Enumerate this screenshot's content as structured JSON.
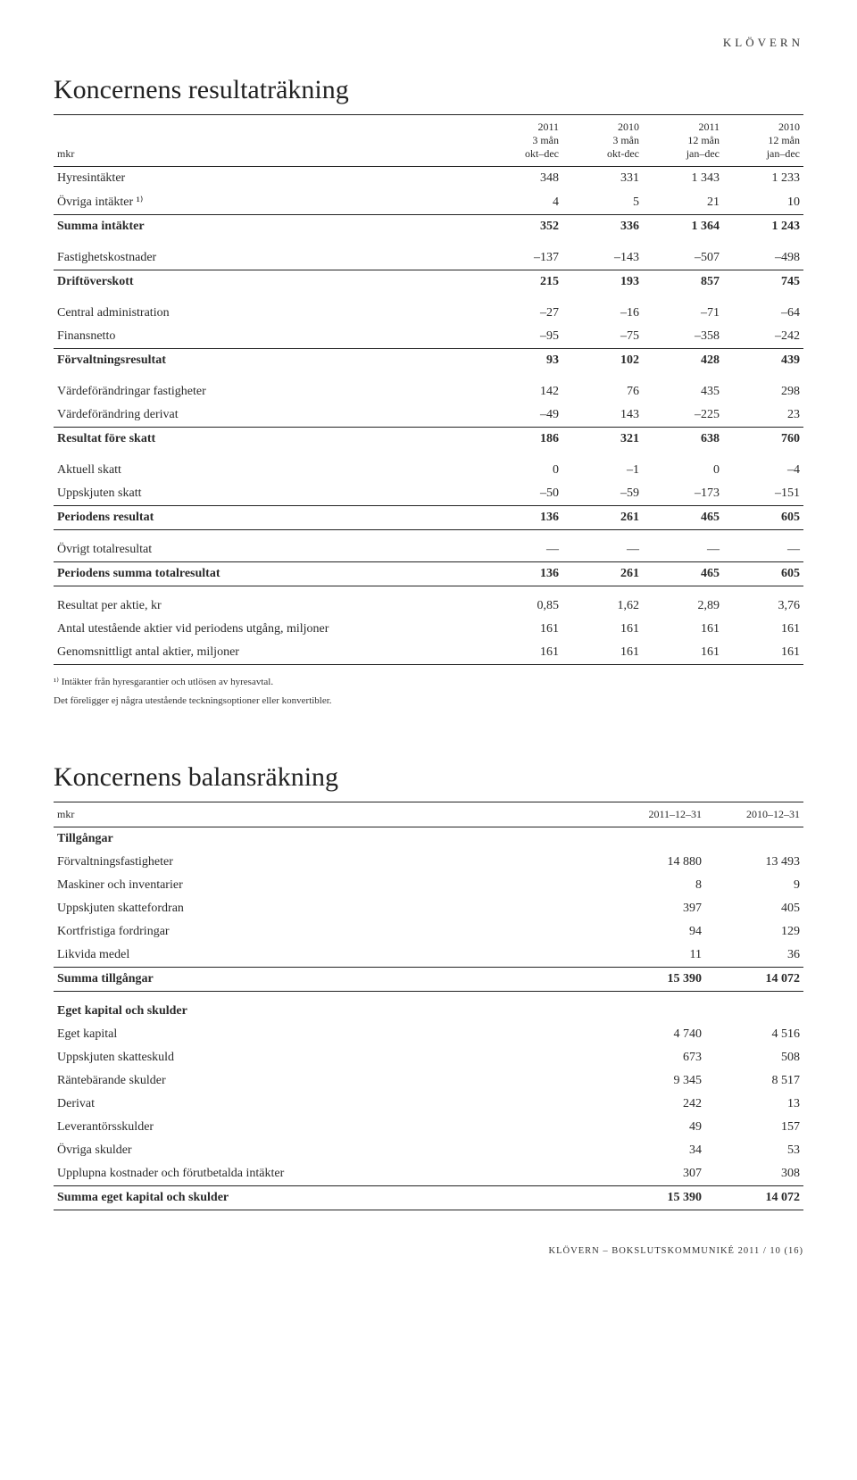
{
  "brand": "KLÖVERN",
  "income": {
    "title": "Koncernens resultaträkning",
    "headers": {
      "unit": "mkr",
      "c1a": "2011",
      "c1b": "3 mån",
      "c1c": "okt–dec",
      "c2a": "2010",
      "c2b": "3 mån",
      "c2c": "okt-dec",
      "c3a": "2011",
      "c3b": "12 mån",
      "c3c": "jan–dec",
      "c4a": "2010",
      "c4b": "12 mån",
      "c4c": "jan–dec"
    },
    "rows": [
      {
        "label": "Hyresintäkter",
        "v": [
          "348",
          "331",
          "1 343",
          "1 233"
        ]
      },
      {
        "label": "Övriga intäkter ¹⁾",
        "v": [
          "4",
          "5",
          "21",
          "10"
        ]
      },
      {
        "label": "Summa intäkter",
        "v": [
          "352",
          "336",
          "1 364",
          "1 243"
        ],
        "bold": true,
        "rule_top": true
      },
      {
        "label": "Fastighetskostnader",
        "v": [
          "–137",
          "–143",
          "–507",
          "–498"
        ],
        "spacer": true
      },
      {
        "label": "Driftöverskott",
        "v": [
          "215",
          "193",
          "857",
          "745"
        ],
        "bold": true,
        "rule_top": true
      },
      {
        "label": "Central administration",
        "v": [
          "–27",
          "–16",
          "–71",
          "–64"
        ],
        "spacer": true
      },
      {
        "label": "Finansnetto",
        "v": [
          "–95",
          "–75",
          "–358",
          "–242"
        ]
      },
      {
        "label": "Förvaltningsresultat",
        "v": [
          "93",
          "102",
          "428",
          "439"
        ],
        "bold": true,
        "rule_top": true
      },
      {
        "label": "Värdeförändringar fastigheter",
        "v": [
          "142",
          "76",
          "435",
          "298"
        ],
        "spacer": true
      },
      {
        "label": "Värdeförändring derivat",
        "v": [
          "–49",
          "143",
          "–225",
          "23"
        ]
      },
      {
        "label": "Resultat före skatt",
        "v": [
          "186",
          "321",
          "638",
          "760"
        ],
        "bold": true,
        "rule_top": true
      },
      {
        "label": "Aktuell skatt",
        "v": [
          "0",
          "–1",
          "0",
          "–4"
        ],
        "spacer": true
      },
      {
        "label": "Uppskjuten skatt",
        "v": [
          "–50",
          "–59",
          "–173",
          "–151"
        ]
      },
      {
        "label": "Periodens resultat",
        "v": [
          "136",
          "261",
          "465",
          "605"
        ],
        "bold": true,
        "rule_top": true,
        "rule_bottom": true
      },
      {
        "label": "Övrigt totalresultat",
        "v": [
          "—",
          "—",
          "—",
          "—"
        ],
        "spacer": true
      },
      {
        "label": "Periodens summa totalresultat",
        "v": [
          "136",
          "261",
          "465",
          "605"
        ],
        "bold": true,
        "rule_top": true,
        "rule_bottom": true
      },
      {
        "label": "Resultat per aktie, kr",
        "v": [
          "0,85",
          "1,62",
          "2,89",
          "3,76"
        ],
        "spacer": true
      },
      {
        "label": "Antal utestående aktier vid periodens utgång, miljoner",
        "v": [
          "161",
          "161",
          "161",
          "161"
        ]
      },
      {
        "label": "Genomsnittligt antal aktier, miljoner",
        "v": [
          "161",
          "161",
          "161",
          "161"
        ],
        "rule_bottom": true
      }
    ],
    "footnote1": "¹⁾ Intäkter från hyresgarantier och utlösen av hyresavtal.",
    "footnote2": "Det föreligger ej några utestående teckningsoptioner eller konvertibler."
  },
  "balance": {
    "title": "Koncernens balansräkning",
    "headers": {
      "unit": "mkr",
      "c1": "2011–12–31",
      "c2": "2010–12–31"
    },
    "rows": [
      {
        "label": "Tillgångar",
        "v": [
          "",
          ""
        ],
        "bold": true
      },
      {
        "label": "Förvaltningsfastigheter",
        "v": [
          "14 880",
          "13 493"
        ]
      },
      {
        "label": "Maskiner och inventarier",
        "v": [
          "8",
          "9"
        ]
      },
      {
        "label": "Uppskjuten skattefordran",
        "v": [
          "397",
          "405"
        ]
      },
      {
        "label": "Kortfristiga fordringar",
        "v": [
          "94",
          "129"
        ]
      },
      {
        "label": "Likvida medel",
        "v": [
          "11",
          "36"
        ]
      },
      {
        "label": "Summa tillgångar",
        "v": [
          "15 390",
          "14 072"
        ],
        "bold": true,
        "rule_top": true,
        "rule_bottom": true
      },
      {
        "label": "Eget kapital och skulder",
        "v": [
          "",
          ""
        ],
        "bold": true,
        "spacer": true
      },
      {
        "label": "Eget kapital",
        "v": [
          "4 740",
          "4 516"
        ]
      },
      {
        "label": "Uppskjuten skatteskuld",
        "v": [
          "673",
          "508"
        ]
      },
      {
        "label": "Räntebärande skulder",
        "v": [
          "9 345",
          "8 517"
        ]
      },
      {
        "label": "Derivat",
        "v": [
          "242",
          "13"
        ]
      },
      {
        "label": "Leverantörsskulder",
        "v": [
          "49",
          "157"
        ]
      },
      {
        "label": "Övriga skulder",
        "v": [
          "34",
          "53"
        ]
      },
      {
        "label": "Upplupna kostnader och förutbetalda intäkter",
        "v": [
          "307",
          "308"
        ]
      },
      {
        "label": "Summa eget kapital och skulder",
        "v": [
          "15 390",
          "14 072"
        ],
        "bold": true,
        "rule_top": true,
        "rule_bottom": true
      }
    ]
  },
  "footer": "KLÖVERN – BOKSLUTSKOMMUNIKÉ 2011  /  10 (16)"
}
